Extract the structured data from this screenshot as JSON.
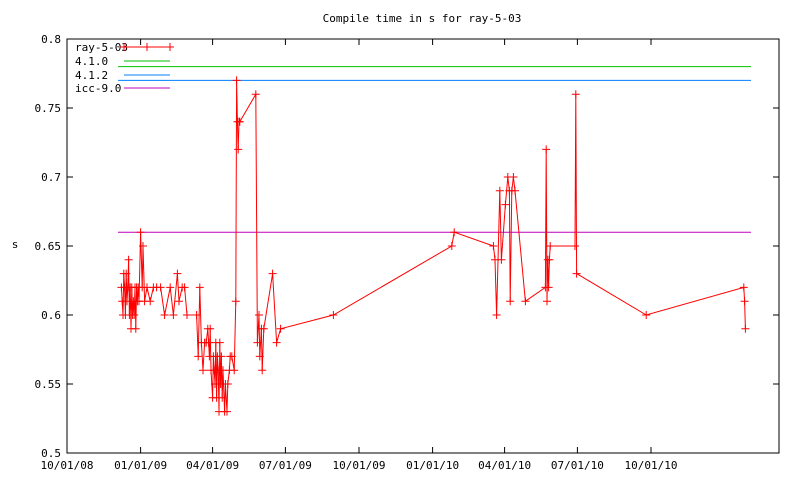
{
  "chart_data": {
    "type": "line",
    "title": "Compile time in s for ray-5-03",
    "xlabel": "",
    "ylabel": "s",
    "ylim": [
      0.5,
      0.8
    ],
    "y_ticks": [
      "0.5",
      "0.55",
      "0.6",
      "0.65",
      "0.7",
      "0.75",
      "0.8"
    ],
    "x_ticks": [
      "10/01/08",
      "01/01/09",
      "04/01/09",
      "07/01/09",
      "10/01/09",
      "01/01/10",
      "04/01/10",
      "07/01/10",
      "10/01/10"
    ],
    "x_tick_dates": [
      "2008-10-01",
      "2009-01-01",
      "2009-04-01",
      "2009-07-01",
      "2009-10-01",
      "2010-01-01",
      "2010-04-01",
      "2010-07-01",
      "2010-10-01"
    ],
    "xlim": [
      "2008-10-01",
      "2011-03-10"
    ],
    "grid": false,
    "legend_position": "top-left",
    "colors": {
      "ray-5-03": "#ff0000",
      "4.1.0": "#00c000",
      "4.1.2": "#0080ff",
      "icc-9.0": "#c000c0"
    },
    "legend": [
      "ray-5-03",
      "4.1.0",
      "4.1.2",
      "icc-9.0"
    ],
    "series": [
      {
        "name": "ray-5-03",
        "type": "line-points",
        "points": [
          [
            "2008-12-08",
            0.62
          ],
          [
            "2008-12-09",
            0.61
          ],
          [
            "2008-12-10",
            0.6
          ],
          [
            "2008-12-11",
            0.63
          ],
          [
            "2008-12-12",
            0.62
          ],
          [
            "2008-12-13",
            0.6
          ],
          [
            "2008-12-14",
            0.63
          ],
          [
            "2008-12-15",
            0.61
          ],
          [
            "2008-12-16",
            0.62
          ],
          [
            "2008-12-17",
            0.64
          ],
          [
            "2008-12-18",
            0.6
          ],
          [
            "2008-12-19",
            0.62
          ],
          [
            "2008-12-20",
            0.59
          ],
          [
            "2008-12-21",
            0.62
          ],
          [
            "2008-12-22",
            0.6
          ],
          [
            "2008-12-23",
            0.61
          ],
          [
            "2008-12-24",
            0.6
          ],
          [
            "2008-12-25",
            0.62
          ],
          [
            "2008-12-26",
            0.59
          ],
          [
            "2008-12-27",
            0.62
          ],
          [
            "2008-12-28",
            0.61
          ],
          [
            "2008-12-29",
            0.62
          ],
          [
            "2008-12-30",
            0.61
          ],
          [
            "2009-01-01",
            0.66
          ],
          [
            "2009-01-03",
            0.62
          ],
          [
            "2009-01-04",
            0.65
          ],
          [
            "2009-01-06",
            0.61
          ],
          [
            "2009-01-09",
            0.62
          ],
          [
            "2009-01-13",
            0.61
          ],
          [
            "2009-01-17",
            0.62
          ],
          [
            "2009-01-21",
            0.62
          ],
          [
            "2009-01-26",
            0.62
          ],
          [
            "2009-01-31",
            0.6
          ],
          [
            "2009-02-07",
            0.62
          ],
          [
            "2009-02-11",
            0.6
          ],
          [
            "2009-02-16",
            0.63
          ],
          [
            "2009-02-18",
            0.61
          ],
          [
            "2009-02-22",
            0.62
          ],
          [
            "2009-02-25",
            0.62
          ],
          [
            "2009-02-28",
            0.6
          ],
          [
            "2009-03-12",
            0.6
          ],
          [
            "2009-03-14",
            0.57
          ],
          [
            "2009-03-16",
            0.62
          ],
          [
            "2009-03-18",
            0.58
          ],
          [
            "2009-03-20",
            0.56
          ],
          [
            "2009-03-22",
            0.58
          ],
          [
            "2009-03-24",
            0.58
          ],
          [
            "2009-03-26",
            0.59
          ],
          [
            "2009-03-27",
            0.58
          ],
          [
            "2009-03-28",
            0.57
          ],
          [
            "2009-03-29",
            0.59
          ],
          [
            "2009-03-30",
            0.56
          ],
          [
            "2009-04-01",
            0.54
          ],
          [
            "2009-04-02",
            0.57
          ],
          [
            "2009-04-03",
            0.56
          ],
          [
            "2009-04-04",
            0.55
          ],
          [
            "2009-04-05",
            0.58
          ],
          [
            "2009-04-06",
            0.54
          ],
          [
            "2009-04-07",
            0.57
          ],
          [
            "2009-04-08",
            0.56
          ],
          [
            "2009-04-09",
            0.53
          ],
          [
            "2009-04-10",
            0.58
          ],
          [
            "2009-04-11",
            0.55
          ],
          [
            "2009-04-12",
            0.57
          ],
          [
            "2009-04-13",
            0.54
          ],
          [
            "2009-04-14",
            0.56
          ],
          [
            "2009-04-16",
            0.53
          ],
          [
            "2009-04-17",
            0.55
          ],
          [
            "2009-04-19",
            0.53
          ],
          [
            "2009-04-20",
            0.55
          ],
          [
            "2009-04-22",
            0.56
          ],
          [
            "2009-04-23",
            0.57
          ],
          [
            "2009-04-25",
            0.57
          ],
          [
            "2009-04-28",
            0.56
          ],
          [
            "2009-04-30",
            0.61
          ],
          [
            "2009-05-01",
            0.77
          ],
          [
            "2009-05-02",
            0.74
          ],
          [
            "2009-05-03",
            0.72
          ],
          [
            "2009-05-04",
            0.74
          ],
          [
            "2009-05-05",
            0.74
          ],
          [
            "2009-05-25",
            0.76
          ],
          [
            "2009-05-27",
            0.58
          ],
          [
            "2009-05-29",
            0.6
          ],
          [
            "2009-05-30",
            0.57
          ],
          [
            "2009-06-01",
            0.59
          ],
          [
            "2009-06-02",
            0.56
          ],
          [
            "2009-06-04",
            0.59
          ],
          [
            "2009-06-15",
            0.63
          ],
          [
            "2009-06-20",
            0.58
          ],
          [
            "2009-06-25",
            0.59
          ],
          [
            "2009-08-30",
            0.6
          ],
          [
            "2010-01-25",
            0.65
          ],
          [
            "2010-01-28",
            0.66
          ],
          [
            "2010-03-18",
            0.65
          ],
          [
            "2010-03-20",
            0.64
          ],
          [
            "2010-03-22",
            0.6
          ],
          [
            "2010-03-26",
            0.69
          ],
          [
            "2010-03-28",
            0.64
          ],
          [
            "2010-04-02",
            0.68
          ],
          [
            "2010-04-05",
            0.7
          ],
          [
            "2010-04-07",
            0.69
          ],
          [
            "2010-04-08",
            0.61
          ],
          [
            "2010-04-10",
            0.69
          ],
          [
            "2010-04-12",
            0.7
          ],
          [
            "2010-04-14",
            0.69
          ],
          [
            "2010-04-27",
            0.61
          ],
          [
            "2010-05-22",
            0.62
          ],
          [
            "2010-05-23",
            0.72
          ],
          [
            "2010-05-24",
            0.61
          ],
          [
            "2010-05-25",
            0.64
          ],
          [
            "2010-05-26",
            0.62
          ],
          [
            "2010-05-27",
            0.64
          ],
          [
            "2010-05-28",
            0.65
          ],
          [
            "2010-06-28",
            0.65
          ],
          [
            "2010-06-29",
            0.76
          ],
          [
            "2010-06-30",
            0.63
          ],
          [
            "2010-09-25",
            0.6
          ],
          [
            "2011-01-25",
            0.62
          ],
          [
            "2011-01-26",
            0.61
          ],
          [
            "2011-01-27",
            0.59
          ]
        ]
      },
      {
        "name": "4.1.0",
        "type": "hline",
        "value": 0.78
      },
      {
        "name": "4.1.2",
        "type": "hline",
        "value": 0.77
      },
      {
        "name": "icc-9.0",
        "type": "hline",
        "value": 0.66
      }
    ]
  }
}
